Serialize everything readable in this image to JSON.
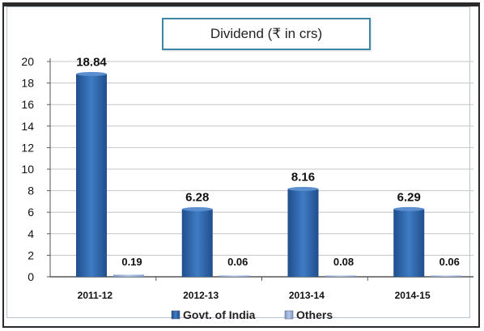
{
  "chart_data": {
    "type": "bar",
    "title": "Dividend (₹  in crs)",
    "categories": [
      "2011-12",
      "2012-13",
      "2013-14",
      "2014-15"
    ],
    "series": [
      {
        "name": "Govt. of India",
        "values": [
          18.84,
          6.28,
          8.16,
          6.29
        ],
        "color": "#2e5f9e"
      },
      {
        "name": "Others",
        "values": [
          0.19,
          0.06,
          0.08,
          0.06
        ],
        "color": "#8fa9d6"
      }
    ],
    "value_labels": [
      [
        "18.84",
        "6.28",
        "8.16",
        "6.29"
      ],
      [
        "0.19",
        "0.06",
        "0.08",
        "0.06"
      ]
    ],
    "y_ticks": [
      "0",
      "2",
      "4",
      "6",
      "8",
      "10",
      "12",
      "14",
      "16",
      "18",
      "20"
    ],
    "ylim": [
      0,
      20
    ],
    "grid": true,
    "legend_position": "bottom"
  }
}
